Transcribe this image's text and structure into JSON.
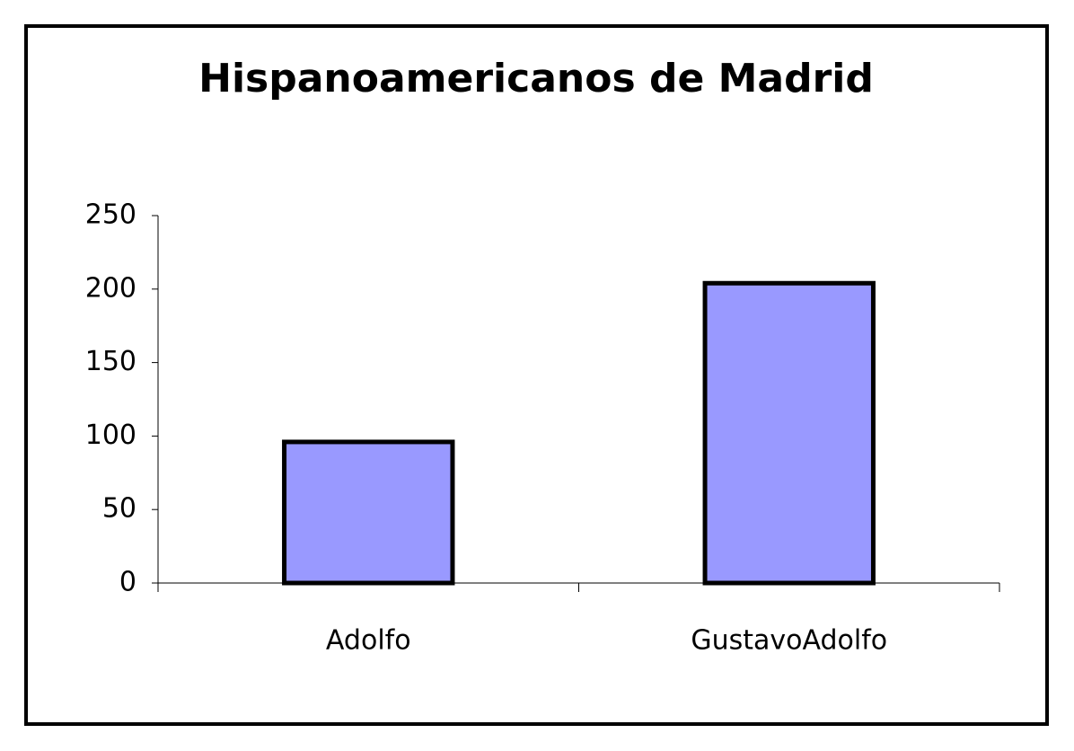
{
  "chart_data": {
    "type": "bar",
    "title": "Hispanoamericanos de Madrid",
    "categories": [
      "Adolfo",
      "GustavoAdolfo"
    ],
    "values": [
      96,
      204
    ],
    "color": "#9999ff",
    "ylim": [
      0,
      250
    ],
    "yticks": [
      0,
      50,
      100,
      150,
      200,
      250
    ]
  }
}
